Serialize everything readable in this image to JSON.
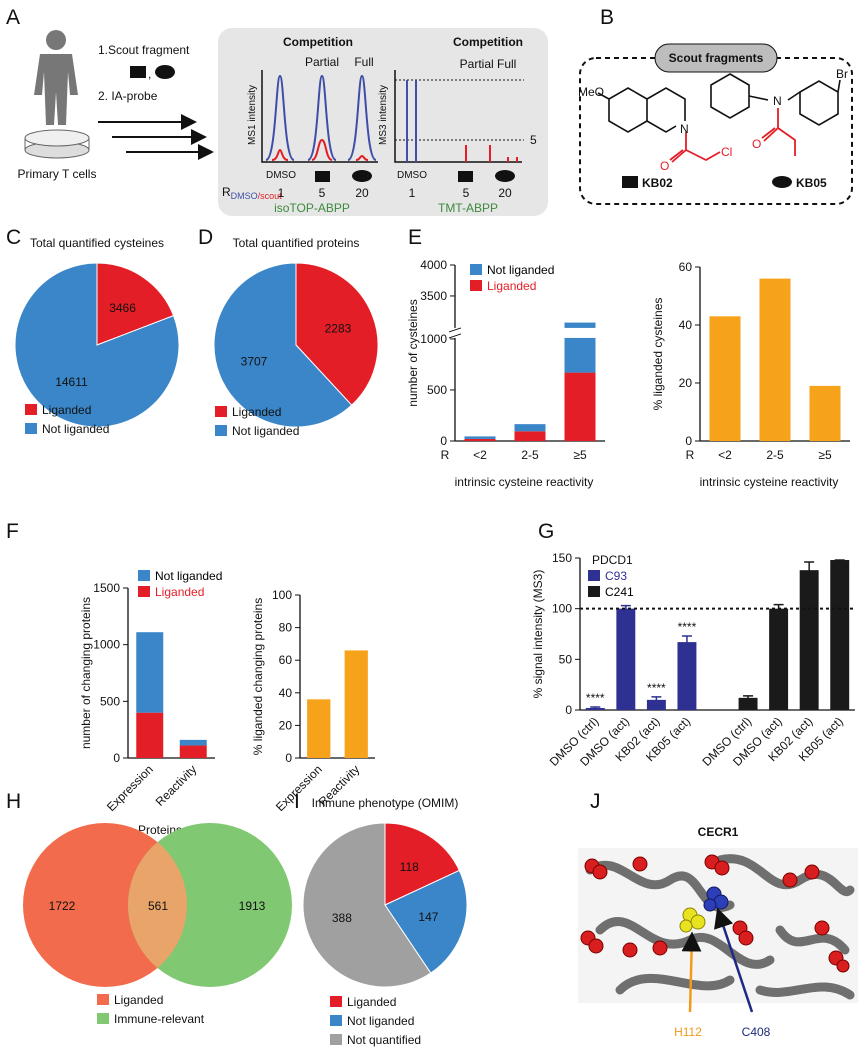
{
  "panel_labels": [
    "A",
    "B",
    "C",
    "D",
    "E",
    "F",
    "G",
    "H",
    "I",
    "J"
  ],
  "panel_a": {
    "steps": [
      "1.Scout fragment",
      "2. IA-probe"
    ],
    "sample": "Primary T cells",
    "isotop": {
      "header": "Competition",
      "partial": "Partial",
      "full": "Full",
      "ylabel": "MS1 intensity",
      "dmso": "DMSO",
      "ratio_label": "R",
      "ratio_sub_dmso": "DMSO",
      "ratio_sub_scout": "/scout",
      "ratios": [
        "1",
        "5",
        "20"
      ],
      "method": "isoTOP-ABPP"
    },
    "tmt": {
      "header": "Competition",
      "partial_full": "Partial Full",
      "ylabel": "MS3 intensity",
      "threshold": "5",
      "dmso": "DMSO",
      "ratios": [
        "1",
        "5",
        "20"
      ],
      "method": "TMT-ABPP"
    }
  },
  "panel_b": {
    "title": "Scout fragments",
    "kb02_atoms": [
      "MeO",
      "N",
      "O",
      "Cl"
    ],
    "kb05_atoms": [
      "N",
      "Br",
      "O"
    ],
    "names": [
      "KB02",
      "KB05"
    ]
  },
  "chart_data": [
    {
      "type": "pie",
      "title": "Total quantified cysteines",
      "categories": [
        "Liganded",
        "Not liganded"
      ],
      "values": [
        3466,
        14611
      ],
      "colors": [
        "#e41e26",
        "#3a86c8"
      ]
    },
    {
      "type": "pie",
      "title": "Total quantified proteins",
      "categories": [
        "Liganded",
        "Not liganded"
      ],
      "values": [
        2283,
        3707
      ],
      "colors": [
        "#e41e26",
        "#3a86c8"
      ]
    },
    {
      "type": "bar",
      "stacked": true,
      "ylabel": "number of cysteines",
      "xlabel": "intrinsic cysteine reactivity",
      "x_prefix_label": "R",
      "categories": [
        "<2",
        "2-5",
        "≥5"
      ],
      "series": [
        {
          "name": "Liganded",
          "color": "#e41e26",
          "text_color": "#e41e26",
          "values": [
            20,
            95,
            670
          ]
        },
        {
          "name": "Not liganded",
          "color": "#3a86c8",
          "text_color": "#000000",
          "values": [
            25,
            70,
            2400
          ]
        }
      ],
      "ylim": [
        0,
        4000
      ],
      "axis_break": [
        1000,
        3000
      ],
      "yticks": [
        0,
        500,
        1000,
        3500,
        4000
      ]
    },
    {
      "type": "bar",
      "ylabel": "% liganded cysteines",
      "xlabel": "intrinsic cysteine reactivity",
      "x_prefix_label": "R",
      "categories": [
        "<2",
        "2-5",
        "≥5"
      ],
      "values": [
        43,
        56,
        19
      ],
      "color": "#f7a21b",
      "ylim": [
        0,
        60
      ],
      "yticks": [
        0,
        20,
        40,
        60
      ]
    },
    {
      "type": "bar",
      "stacked": true,
      "ylabel": "number of changing proteins",
      "xtick_rotation": 45,
      "categories": [
        "Expression",
        "Reactivity"
      ],
      "series": [
        {
          "name": "Liganded",
          "color": "#e41e26",
          "text_color": "#e41e26",
          "values": [
            400,
            110
          ]
        },
        {
          "name": "Not liganded",
          "color": "#3a86c8",
          "text_color": "#000000",
          "values": [
            710,
            50
          ]
        }
      ],
      "ylim": [
        0,
        1500
      ],
      "yticks": [
        0,
        500,
        1000,
        1500
      ]
    },
    {
      "type": "bar",
      "ylabel": "% liganded changing proteins",
      "xtick_rotation": 45,
      "categories": [
        "Expression",
        "Reactivity"
      ],
      "values": [
        36,
        66
      ],
      "color": "#f7a21b",
      "ylim": [
        0,
        100
      ],
      "yticks": [
        0,
        20,
        40,
        60,
        80,
        100
      ]
    },
    {
      "type": "bar",
      "ylabel": "% signal intensity (MS3)",
      "xtick_rotation": 45,
      "legend_title": "PDCD1",
      "reference_line": 100,
      "categories": [
        "DMSO (ctrl)",
        "DMSO (act)",
        "KB02 (act)",
        "KB05 (act)",
        null,
        "DMSO (ctrl)",
        "DMSO (act)",
        "KB02 (act)",
        "KB05 (act)"
      ],
      "series": [
        {
          "name": "C93",
          "color": "#2e3192",
          "text_color": "#2e3192",
          "values": [
            2,
            100,
            10,
            67,
            null,
            null,
            null,
            null,
            null
          ],
          "errors": [
            1,
            3,
            3,
            6,
            null,
            null,
            null,
            null,
            null
          ]
        },
        {
          "name": "C241",
          "color": "#1a1a1a",
          "text_color": "#000000",
          "values": [
            null,
            null,
            null,
            null,
            null,
            12,
            100,
            138,
            148
          ],
          "errors": [
            null,
            null,
            null,
            null,
            null,
            2,
            4,
            8,
            0
          ]
        }
      ],
      "annotations": [
        "****",
        null,
        "****",
        "****",
        null,
        null,
        null,
        null,
        null
      ],
      "ylim": [
        0,
        150
      ],
      "yticks": [
        0,
        50,
        100,
        150
      ]
    },
    {
      "type": "venn",
      "title": "Proteins",
      "sets": [
        "Liganded",
        "Immune-relevant"
      ],
      "colors": [
        "#f26b4c",
        "#80c871"
      ],
      "overlap_color": "#e9a46a",
      "values": [
        1722,
        561,
        1913
      ]
    },
    {
      "type": "pie",
      "title": "Immune phenotype (OMIM)",
      "categories": [
        "Liganded",
        "Not liganded",
        "Not quantified"
      ],
      "values": [
        118,
        147,
        388
      ],
      "colors": [
        "#e41e26",
        "#3a86c8",
        "#a0a0a0"
      ]
    }
  ],
  "panel_j": {
    "title": "CECR1",
    "residues": [
      "H112",
      "C408"
    ]
  }
}
